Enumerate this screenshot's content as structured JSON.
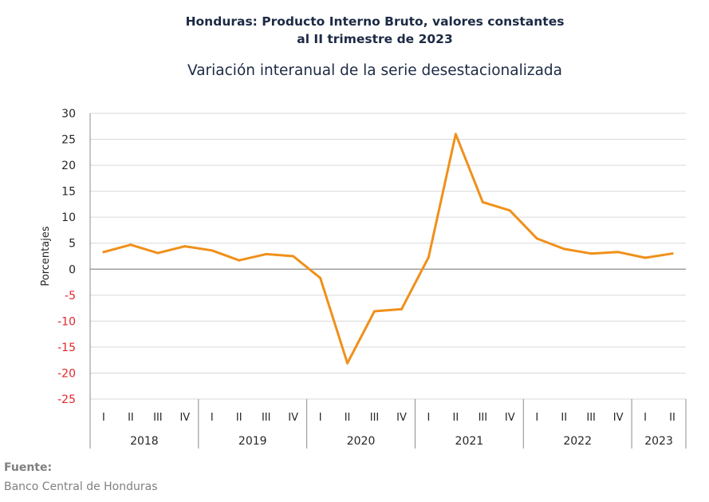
{
  "header": {
    "title_line1": "Honduras: Producto Interno Bruto, valores constantes",
    "title_line2": "al II trimestre de 2023",
    "subtitle": "Variación interanual de la serie desestacionalizada"
  },
  "footer": {
    "source_label": "Fuente:",
    "source_text": "Banco Central de Honduras"
  },
  "colors": {
    "line": "#f0901a",
    "negative_tick": "#e0262b",
    "positive_tick": "#262626",
    "grid": "#d9d9d9",
    "zero_line": "#8c8c8c"
  },
  "chart_data": {
    "type": "line",
    "title": "Variación interanual de la serie desestacionalizada",
    "ylabel": "Porcentajes",
    "xlabel": "",
    "ylim": [
      -25,
      30
    ],
    "yticks": [
      30,
      25,
      20,
      15,
      10,
      5,
      0,
      -5,
      -10,
      -15,
      -20,
      -25
    ],
    "grid": true,
    "legend": "none",
    "years": [
      {
        "label": "2018",
        "quarters": [
          "I",
          "II",
          "III",
          "IV"
        ]
      },
      {
        "label": "2019",
        "quarters": [
          "I",
          "II",
          "III",
          "IV"
        ]
      },
      {
        "label": "2020",
        "quarters": [
          "I",
          "II",
          "III",
          "IV"
        ]
      },
      {
        "label": "2021",
        "quarters": [
          "I",
          "II",
          "III",
          "IV"
        ]
      },
      {
        "label": "2022",
        "quarters": [
          "I",
          "II",
          "III",
          "IV"
        ]
      },
      {
        "label": "2023",
        "quarters": [
          "I",
          "II"
        ]
      }
    ],
    "values": [
      3.3,
      4.7,
      3.1,
      4.4,
      3.6,
      1.7,
      2.9,
      2.5,
      -1.7,
      -18.1,
      -8.1,
      -7.7,
      2.3,
      26.0,
      12.9,
      11.3,
      5.9,
      3.9,
      3.0,
      3.3,
      2.2,
      3.0
    ]
  }
}
